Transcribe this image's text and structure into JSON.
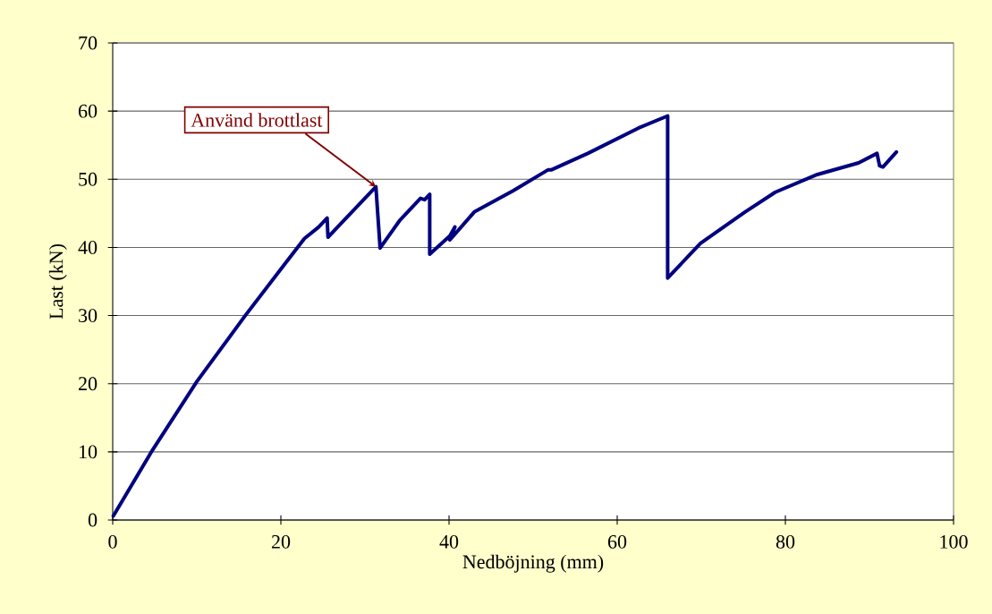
{
  "chart_data": {
    "type": "line",
    "xlabel": "Nedböjning  (mm)",
    "ylabel": "Last  (kN)",
    "x": [
      0.07,
      4.7,
      10,
      15.7,
      20.3,
      22.8,
      24.5,
      25.5,
      25.6,
      31.3,
      31.8,
      34.1,
      36.6,
      37.1,
      37.7,
      37.7,
      40.1,
      40.7,
      40.1,
      43,
      47.6,
      51.8,
      52.2,
      56.5,
      62.5,
      66.0,
      66.0,
      69.9,
      75.2,
      78.8,
      83.8,
      88.7,
      90.9,
      91.2,
      91.6,
      93.2
    ],
    "series": [
      {
        "color": "#000080",
        "values": [
          0.6,
          10.2,
          20.3,
          29.9,
          37.3,
          41.3,
          43,
          44.3,
          41.5,
          48.9,
          39.9,
          43.9,
          47.2,
          47,
          47.8,
          39.0,
          41.7,
          43,
          41.1,
          45.2,
          48.3,
          51.4,
          51.4,
          53.8,
          57.5,
          59.3,
          35.5,
          40.6,
          45.2,
          48.1,
          50.7,
          52.4,
          53.8,
          52.0,
          51.8,
          54.0
        ]
      }
    ],
    "xlim": [
      0,
      100
    ],
    "ylim": [
      0,
      70
    ],
    "xticks": [
      0,
      20,
      40,
      60,
      80,
      100
    ],
    "yticks": [
      0,
      10,
      20,
      30,
      40,
      50,
      60,
      70
    ],
    "grid": "y",
    "marker": "none",
    "line_style": "solid",
    "annotations": [
      {
        "text": "Använd brottlast",
        "x": 31.3,
        "y": 48.9
      }
    ]
  }
}
